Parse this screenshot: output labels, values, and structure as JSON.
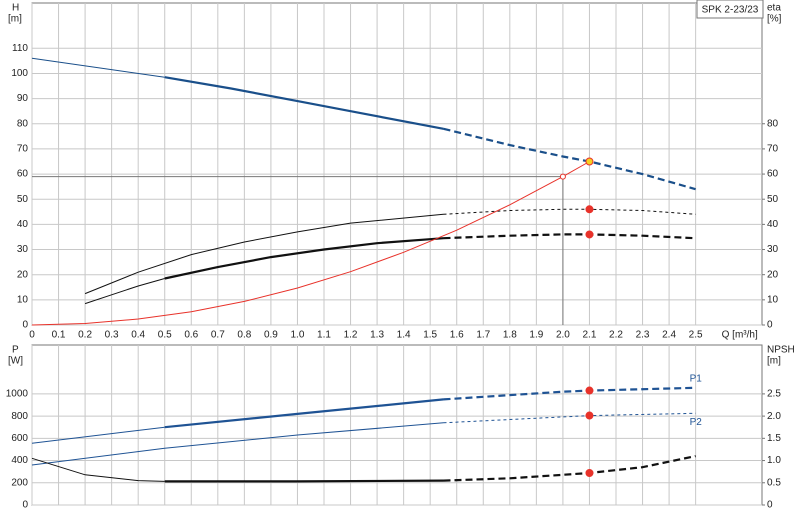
{
  "chart_data": [
    {
      "type": "line",
      "title": "SPK 2-23/23",
      "ylabel": "H",
      "yunit": "[m]",
      "y2label": "eta",
      "y2unit": "[%]",
      "xlabel": "Q [m³/h]",
      "xlim": [
        0,
        2.75
      ],
      "ylim": [
        0,
        128
      ],
      "y2lim": [
        0,
        128
      ],
      "grid": true,
      "xticks": [
        0,
        0.1,
        0.2,
        0.3,
        0.4,
        0.5,
        0.6,
        0.7,
        0.8,
        0.9,
        {
          "value": 1,
          "label": "1.0"
        },
        1.1,
        1.2,
        1.3,
        1.4,
        1.5,
        1.6,
        1.7,
        1.8,
        1.9,
        {
          "value": 2,
          "label": "2.0"
        },
        2.1,
        2.2,
        2.3,
        2.4,
        2.5
      ],
      "yticks": [
        0,
        10,
        20,
        30,
        40,
        50,
        60,
        70,
        80,
        90,
        100,
        110
      ],
      "y2ticks": [
        0,
        10,
        20,
        30,
        40,
        50,
        60,
        70,
        80
      ],
      "series": [
        {
          "color": "#1a4f8a",
          "width": 1,
          "dashed": false,
          "x": [
            0,
            0.5
          ],
          "values": [
            106,
            98.5
          ]
        },
        {
          "color": "#1a4f8a",
          "width": 2.2,
          "dashed": false,
          "x": [
            0.5,
            0.75,
            1.0,
            1.25,
            1.55
          ],
          "values": [
            98.5,
            94,
            89,
            84,
            78
          ]
        },
        {
          "color": "#1a4f8a",
          "width": 2.2,
          "dashed": true,
          "x": [
            1.55,
            1.8,
            2.0,
            2.1,
            2.3,
            2.5
          ],
          "values": [
            78,
            71.5,
            67,
            65,
            60,
            54
          ]
        },
        {
          "color": "#111111",
          "width": 1,
          "dashed": false,
          "axis": "y2",
          "x": [
            0.2,
            0.4,
            0.6,
            0.8,
            1.0,
            1.2,
            1.55
          ],
          "values": [
            12.5,
            21,
            28,
            33,
            37,
            40.5,
            44
          ]
        },
        {
          "color": "#111111",
          "width": 1,
          "dashed": true,
          "axis": "y2",
          "x": [
            1.55,
            1.8,
            2.0,
            2.1,
            2.3,
            2.5
          ],
          "values": [
            44,
            45.5,
            46,
            46,
            45.5,
            44
          ]
        },
        {
          "color": "#111111",
          "width": 1,
          "dashed": false,
          "axis": "y2",
          "x": [
            0.2,
            0.3,
            0.4,
            0.5
          ],
          "values": [
            8.5,
            12,
            15.5,
            18.5
          ]
        },
        {
          "color": "#111111",
          "width": 2.2,
          "dashed": false,
          "axis": "y2",
          "x": [
            0.5,
            0.7,
            0.9,
            1.1,
            1.3,
            1.55
          ],
          "values": [
            18.5,
            23,
            27,
            30,
            32.5,
            34.5
          ]
        },
        {
          "color": "#111111",
          "width": 2.2,
          "dashed": true,
          "axis": "y2",
          "x": [
            1.55,
            1.8,
            2.0,
            2.1,
            2.3,
            2.5
          ],
          "values": [
            34.5,
            35.5,
            36,
            36,
            35.5,
            34.5
          ]
        },
        {
          "color": "#e8322a",
          "width": 1,
          "dashed": false,
          "x": [
            0,
            0.2,
            0.4,
            0.6,
            0.8,
            1.0,
            1.2,
            1.4,
            1.6,
            1.8,
            2.0,
            2.1
          ],
          "values": [
            0,
            0.6,
            2.4,
            5.3,
            9.4,
            14.7,
            21.2,
            28.9,
            37.7,
            47.8,
            59,
            65
          ]
        }
      ],
      "points": [
        {
          "x": 2.0,
          "y": 59,
          "color": "#e8322a",
          "hollow": true,
          "guide": true
        },
        {
          "x": 2.1,
          "y": 65,
          "color": "#f5d020"
        },
        {
          "x": 2.1,
          "y": 46,
          "color": "#e8322a"
        },
        {
          "x": 2.1,
          "y": 36,
          "color": "#e8322a"
        }
      ]
    },
    {
      "type": "line",
      "ylabel": "P",
      "yunit": "[W]",
      "y2label": "NPSH",
      "y2unit": "[m]",
      "xlim": [
        0,
        2.75
      ],
      "ylim": [
        0,
        1440
      ],
      "y2lim": [
        0,
        3.6
      ],
      "grid": true,
      "xticks": [
        0,
        0.1,
        0.2,
        0.3,
        0.4,
        0.5,
        0.6,
        0.7,
        0.8,
        0.9,
        1,
        1.1,
        1.2,
        1.3,
        1.4,
        1.5,
        1.6,
        1.7,
        1.8,
        1.9,
        2,
        2.1,
        2.2,
        2.3,
        2.4,
        2.5
      ],
      "yticks": [
        0,
        200,
        400,
        600,
        800,
        1000
      ],
      "y2ticks": [
        0,
        0.5,
        {
          "value": 1,
          "label": "1.0"
        },
        1.5,
        {
          "value": 2,
          "label": "2.0"
        },
        2.5
      ],
      "series": [
        {
          "color": "#1f5394",
          "width": 1,
          "dashed": false,
          "x": [
            0,
            0.5
          ],
          "values": [
            555,
            700
          ]
        },
        {
          "color": "#1f5394",
          "width": 2.2,
          "dashed": false,
          "x": [
            0.5,
            1.0,
            1.55
          ],
          "values": [
            700,
            820,
            950
          ]
        },
        {
          "color": "#1f5394",
          "width": 2.2,
          "dashed": true,
          "label": "P1",
          "x": [
            1.55,
            2.0,
            2.1,
            2.5
          ],
          "values": [
            950,
            1020,
            1030,
            1055
          ]
        },
        {
          "color": "#1f5394",
          "width": 1,
          "dashed": false,
          "x": [
            0,
            0.5,
            1.0,
            1.55
          ],
          "values": [
            360,
            510,
            630,
            740
          ]
        },
        {
          "color": "#1f5394",
          "width": 1,
          "dashed": true,
          "label": "P2",
          "x": [
            1.55,
            2.1,
            2.5
          ],
          "values": [
            740,
            805,
            825
          ]
        },
        {
          "color": "#111111",
          "width": 1,
          "dashed": false,
          "axis": "y2",
          "x": [
            0,
            0.2,
            0.4,
            0.5
          ],
          "values": [
            1.05,
            0.68,
            0.55,
            0.53
          ]
        },
        {
          "color": "#111111",
          "width": 2.2,
          "dashed": false,
          "axis": "y2",
          "x": [
            0.5,
            1.0,
            1.55
          ],
          "values": [
            0.53,
            0.53,
            0.55
          ]
        },
        {
          "color": "#111111",
          "width": 2.2,
          "dashed": true,
          "axis": "y2",
          "x": [
            1.55,
            1.8,
            2.0,
            2.1,
            2.3,
            2.5
          ],
          "values": [
            0.55,
            0.6,
            0.68,
            0.72,
            0.85,
            1.1
          ]
        }
      ],
      "points": [
        {
          "x": 2.1,
          "y": 1030,
          "color": "#e8322a"
        },
        {
          "x": 2.1,
          "y": 805,
          "color": "#e8322a"
        },
        {
          "x": 2.1,
          "y": 0.72,
          "color": "#e8322a",
          "axis": "y2"
        }
      ]
    }
  ]
}
